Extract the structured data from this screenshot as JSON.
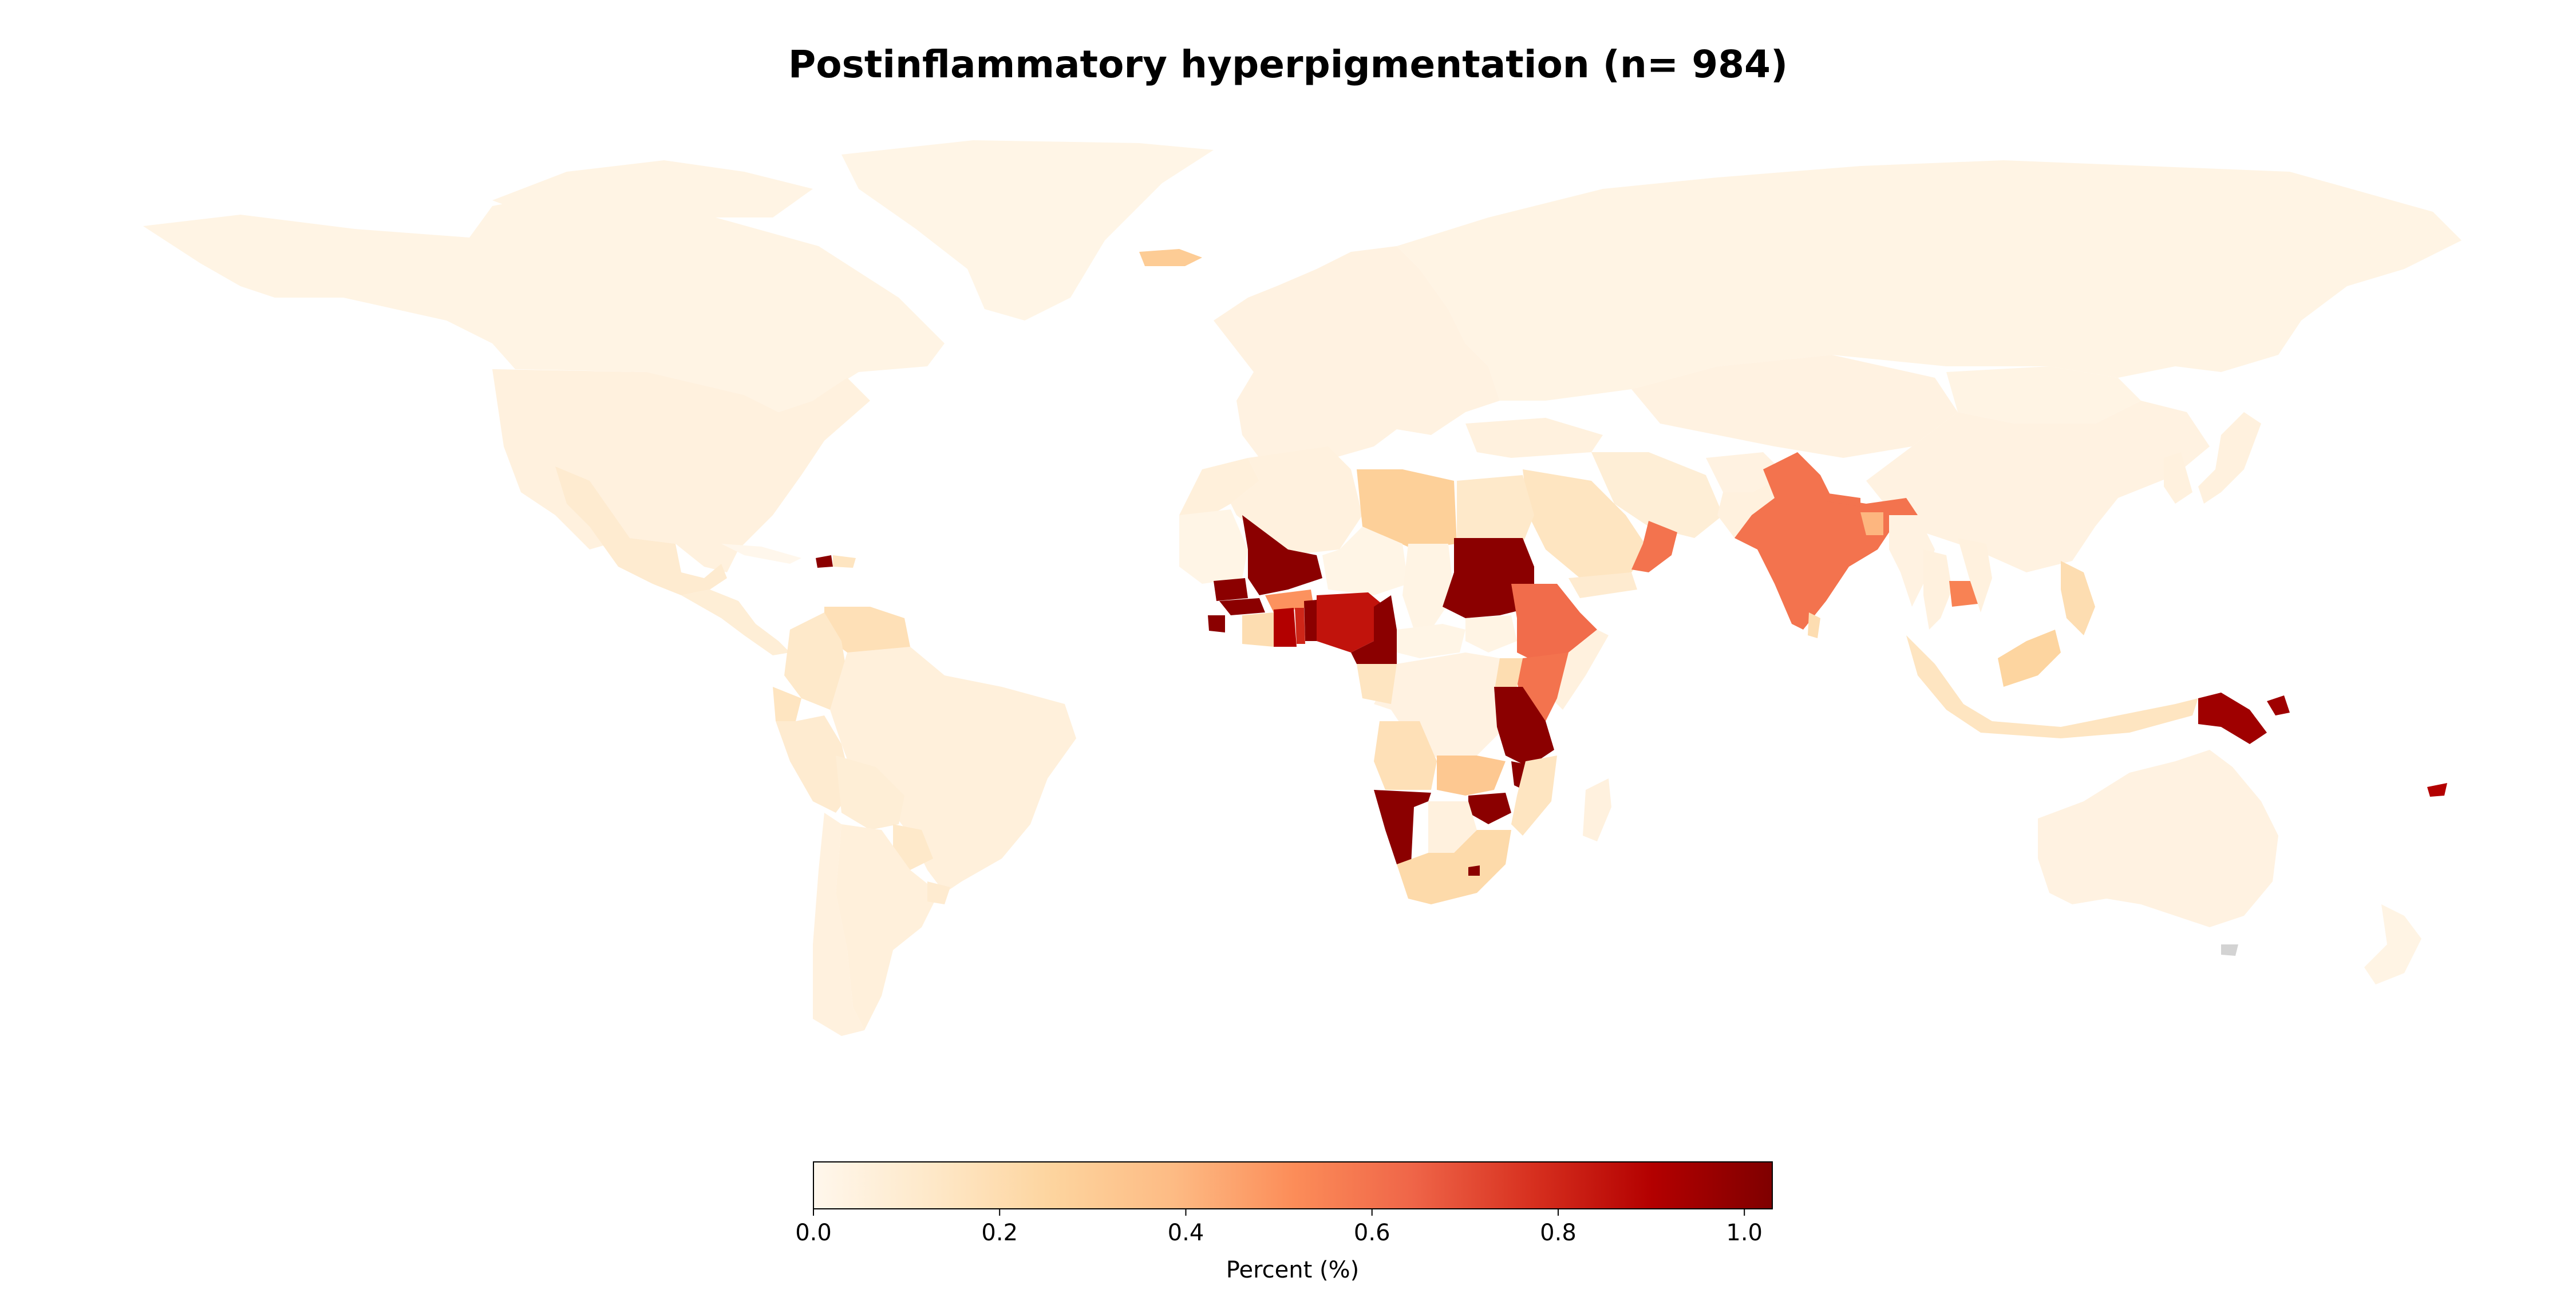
{
  "chart_data": {
    "type": "choropleth",
    "title": "Postinflammatory hyperpigmentation (n= 984)",
    "colorbar": {
      "label": "Percent (%)",
      "range": [
        0.0,
        1.03
      ],
      "ticks": [
        "0.0",
        "0.2",
        "0.4",
        "0.6",
        "0.8",
        "1.0"
      ],
      "tick_values": [
        0.0,
        0.2,
        0.4,
        0.6,
        0.8,
        1.0
      ],
      "colormap": "OrRd",
      "stops": [
        "#fff7ec",
        "#fee8c8",
        "#fdd49e",
        "#fdbb84",
        "#fc8d59",
        "#ef6548",
        "#d7301f",
        "#b30000",
        "#7f0000"
      ]
    },
    "no_data_color": "#d3d3d3",
    "regions": [
      {
        "name": "Canada",
        "value": 0.03
      },
      {
        "name": "United States",
        "value": 0.05
      },
      {
        "name": "Greenland",
        "value": 0.02
      },
      {
        "name": "Mexico",
        "value": 0.1
      },
      {
        "name": "Central America",
        "value": 0.08
      },
      {
        "name": "Cuba",
        "value": 0.0
      },
      {
        "name": "Haiti",
        "value": 1.0
      },
      {
        "name": "Dominican Republic",
        "value": 0.15
      },
      {
        "name": "Venezuela",
        "value": 0.18
      },
      {
        "name": "Colombia",
        "value": 0.12
      },
      {
        "name": "Ecuador",
        "value": 0.15
      },
      {
        "name": "Peru",
        "value": 0.1
      },
      {
        "name": "Brazil",
        "value": 0.06
      },
      {
        "name": "Bolivia",
        "value": 0.08
      },
      {
        "name": "Paraguay",
        "value": 0.12
      },
      {
        "name": "Argentina",
        "value": 0.06
      },
      {
        "name": "Chile",
        "value": 0.05
      },
      {
        "name": "Uruguay",
        "value": 0.1
      },
      {
        "name": "Iceland",
        "value": 0.3
      },
      {
        "name": "Europe",
        "value": 0.04
      },
      {
        "name": "Russia",
        "value": 0.03
      },
      {
        "name": "Morocco",
        "value": 0.06
      },
      {
        "name": "Algeria",
        "value": 0.05
      },
      {
        "name": "Libya",
        "value": 0.28
      },
      {
        "name": "Egypt",
        "value": 0.12
      },
      {
        "name": "Mauritania",
        "value": 0.02
      },
      {
        "name": "Mali",
        "value": 1.0
      },
      {
        "name": "Niger",
        "value": 0.02
      },
      {
        "name": "Chad",
        "value": 0.03
      },
      {
        "name": "Sudan",
        "value": 1.0
      },
      {
        "name": "Senegal",
        "value": 1.0
      },
      {
        "name": "Guinea",
        "value": 1.0
      },
      {
        "name": "Sierra Leone",
        "value": 1.0
      },
      {
        "name": "Cote d'Ivoire",
        "value": 0.2
      },
      {
        "name": "Burkina Faso",
        "value": 0.5
      },
      {
        "name": "Ghana",
        "value": 0.9
      },
      {
        "name": "Togo",
        "value": 0.8
      },
      {
        "name": "Benin",
        "value": 1.0
      },
      {
        "name": "Nigeria",
        "value": 0.85
      },
      {
        "name": "Cameroon",
        "value": 1.0
      },
      {
        "name": "Central African Republic",
        "value": 0.02
      },
      {
        "name": "Ethiopia",
        "value": 0.62
      },
      {
        "name": "Somalia",
        "value": 0.05
      },
      {
        "name": "South Sudan",
        "value": 0.03
      },
      {
        "name": "Uganda",
        "value": 0.2
      },
      {
        "name": "Kenya",
        "value": 0.6
      },
      {
        "name": "DR Congo",
        "value": 0.04
      },
      {
        "name": "Gabon",
        "value": 0.15
      },
      {
        "name": "Tanzania",
        "value": 1.0
      },
      {
        "name": "Malawi",
        "value": 1.0
      },
      {
        "name": "Angola",
        "value": 0.18
      },
      {
        "name": "Zambia",
        "value": 0.32
      },
      {
        "name": "Mozambique",
        "value": 0.15
      },
      {
        "name": "Zimbabwe",
        "value": 1.0
      },
      {
        "name": "Namibia",
        "value": 1.0
      },
      {
        "name": "Botswana",
        "value": 0.05
      },
      {
        "name": "South Africa",
        "value": 0.22
      },
      {
        "name": "Lesotho",
        "value": 1.0
      },
      {
        "name": "Madagascar",
        "value": 0.05
      },
      {
        "name": "Saudi Arabia",
        "value": 0.15
      },
      {
        "name": "Yemen",
        "value": 0.1
      },
      {
        "name": "Oman",
        "value": 0.6
      },
      {
        "name": "Iran",
        "value": 0.08
      },
      {
        "name": "Turkey",
        "value": 0.05
      },
      {
        "name": "Central Asia",
        "value": 0.04
      },
      {
        "name": "Pakistan",
        "value": 0.05
      },
      {
        "name": "Afghanistan",
        "value": 0.04
      },
      {
        "name": "India",
        "value": 0.6
      },
      {
        "name": "Nepal",
        "value": 0.6
      },
      {
        "name": "Bangladesh",
        "value": 0.4
      },
      {
        "name": "Sri Lanka",
        "value": 0.2
      },
      {
        "name": "China",
        "value": 0.04
      },
      {
        "name": "Mongolia",
        "value": 0.03
      },
      {
        "name": "Japan",
        "value": 0.05
      },
      {
        "name": "Korea",
        "value": 0.05
      },
      {
        "name": "Myanmar",
        "value": 0.04
      },
      {
        "name": "Thailand",
        "value": 0.05
      },
      {
        "name": "Cambodia",
        "value": 0.55
      },
      {
        "name": "Vietnam",
        "value": 0.05
      },
      {
        "name": "Philippines",
        "value": 0.2
      },
      {
        "name": "Malaysia",
        "value": 0.25
      },
      {
        "name": "Indonesia",
        "value": 0.15
      },
      {
        "name": "Papua New Guinea",
        "value": 0.95
      },
      {
        "name": "Australia",
        "value": 0.04
      },
      {
        "name": "New Zealand",
        "value": 0.03
      },
      {
        "name": "Fiji",
        "value": 0.9
      }
    ]
  }
}
